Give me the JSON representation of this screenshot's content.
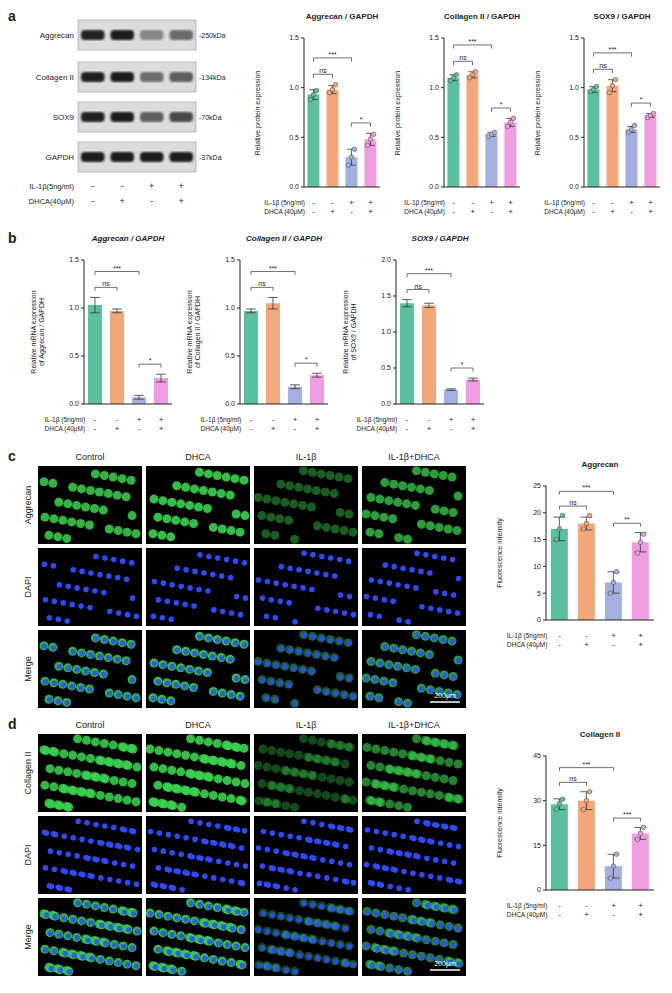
{
  "panel_labels": [
    "a",
    "b",
    "c",
    "d"
  ],
  "conditions": [
    {
      "label": "IL-1β (5ng/ml)",
      "marks": [
        "-",
        "-",
        "+",
        "+"
      ]
    },
    {
      "label": "DHCA (40μM)",
      "marks": [
        "-",
        "+",
        "-",
        "+"
      ]
    }
  ],
  "blot": {
    "proteins": [
      {
        "name": "Aggrecan",
        "size": "-250kDa"
      },
      {
        "name": "Collagen II",
        "size": "-134kDa"
      },
      {
        "name": "SOX9",
        "size": "-70kDa"
      },
      {
        "name": "GAPDH",
        "size": "-37kDa"
      }
    ],
    "conditions": [
      {
        "label": "IL-1β(5ng/ml)",
        "marks": [
          "-",
          "-",
          "+",
          "+"
        ]
      },
      {
        "label": "DHCA(40μM)",
        "marks": [
          "-",
          "+",
          "-",
          "+"
        ]
      }
    ]
  },
  "images": [
    {
      "columns": [
        "Control",
        "DHCA",
        "IL-1β",
        "IL-1β+DHCA"
      ],
      "rows": [
        "Aggrecan",
        "DAPI",
        "Merge"
      ],
      "scale_bar": "200μm"
    },
    {
      "columns": [
        "Control",
        "DHCA",
        "IL-1β",
        "IL-1β+DHCA"
      ],
      "rows": [
        "Collagen II",
        "DAPI",
        "Merge"
      ],
      "scale_bar": "200μm"
    }
  ],
  "chart_data": [
    {
      "type": "bar",
      "title": "Aggrecan / GAPDH",
      "y_label": [
        "Relative protein expression"
      ],
      "categories": [
        null,
        null,
        null,
        null
      ],
      "values": [
        0.93,
        0.98,
        0.3,
        0.48
      ],
      "errors": [
        0.05,
        0.04,
        0.08,
        0.06
      ],
      "points": [
        [
          0.88,
          0.93,
          0.97
        ],
        [
          0.95,
          0.98,
          1.03
        ],
        [
          0.22,
          0.3,
          0.38
        ],
        [
          0.42,
          0.48,
          0.53
        ]
      ],
      "colors": [
        "#5cc0a0",
        "#f2a87a",
        "#a4b0e0",
        "#ef9ce0"
      ],
      "ylim": [
        0,
        1.5
      ],
      "yticks": [
        {
          "value": 0,
          "label": "0.0"
        },
        0.5,
        {
          "value": 1,
          "label": "1.0"
        },
        1.5
      ],
      "significance": [
        {
          "from": 0,
          "to": 1,
          "label": "ns"
        },
        {
          "from": 0,
          "to": 2,
          "label": "***"
        },
        {
          "from": 2,
          "to": 3,
          "label": "*"
        }
      ]
    },
    {
      "type": "bar",
      "title": "Collagen II / GAPDH",
      "y_label": [
        "Relative protein expression"
      ],
      "categories": [
        null,
        null,
        null,
        null
      ],
      "values": [
        1.1,
        1.13,
        0.53,
        0.65
      ],
      "errors": [
        0.03,
        0.03,
        0.02,
        0.04
      ],
      "points": [
        [
          1.07,
          1.1,
          1.13
        ],
        [
          1.1,
          1.13,
          1.16
        ],
        [
          0.51,
          0.53,
          0.55
        ],
        [
          0.61,
          0.65,
          0.69
        ]
      ],
      "colors": [
        "#5cc0a0",
        "#f2a87a",
        "#a4b0e0",
        "#ef9ce0"
      ],
      "ylim": [
        0,
        1.5
      ],
      "yticks": [
        {
          "value": 0,
          "label": "0.0"
        },
        0.5,
        {
          "value": 1,
          "label": "1.0"
        },
        1.5
      ],
      "significance": [
        {
          "from": 0,
          "to": 1,
          "label": "ns"
        },
        {
          "from": 0,
          "to": 2,
          "label": "***"
        },
        {
          "from": 2,
          "to": 3,
          "label": "*"
        }
      ]
    },
    {
      "type": "bar",
      "title": "SOX9 / GAPDH",
      "y_label": [
        "Relative protein expression"
      ],
      "categories": [
        null,
        null,
        null,
        null
      ],
      "values": [
        0.98,
        1.02,
        0.58,
        0.72
      ],
      "errors": [
        0.03,
        0.06,
        0.03,
        0.02
      ],
      "points": [
        [
          0.96,
          0.98,
          1.01
        ],
        [
          0.95,
          1.02,
          1.08
        ],
        [
          0.55,
          0.58,
          0.62
        ],
        [
          0.7,
          0.72,
          0.74
        ]
      ],
      "colors": [
        "#5cc0a0",
        "#f2a87a",
        "#a4b0e0",
        "#ef9ce0"
      ],
      "ylim": [
        0,
        1.5
      ],
      "yticks": [
        {
          "value": 0,
          "label": "0.0"
        },
        0.5,
        {
          "value": 1,
          "label": "1.0"
        },
        1.5
      ],
      "significance": [
        {
          "from": 0,
          "to": 1,
          "label": "ns"
        },
        {
          "from": 0,
          "to": 2,
          "label": "***"
        },
        {
          "from": 2,
          "to": 3,
          "label": "*"
        }
      ]
    },
    {
      "type": "bar",
      "title": "Aggrecan / GAPDH",
      "y_label": [
        "Relative mRNA expression",
        "of Aggrecan / GAPDH"
      ],
      "categories": [
        null,
        null,
        null,
        null
      ],
      "values": [
        1.03,
        0.97,
        0.07,
        0.27
      ],
      "errors": [
        0.08,
        0.02,
        0.02,
        0.04
      ],
      "colors": [
        "#5cc0a0",
        "#f2a87a",
        "#a4b0e0",
        "#ef9ce0"
      ],
      "ylim": [
        0,
        1.5
      ],
      "yticks": [
        {
          "value": 0,
          "label": "0.0"
        },
        0.5,
        {
          "value": 1,
          "label": "1.0"
        },
        1.5
      ],
      "significance": [
        {
          "from": 0,
          "to": 1,
          "label": "ns"
        },
        {
          "from": 0,
          "to": 2,
          "label": "***"
        },
        {
          "from": 2,
          "to": 3,
          "label": "*"
        }
      ]
    },
    {
      "type": "bar",
      "title": "Collagen II / GAPDH",
      "y_label": [
        "Relative mRNA expression",
        "of Collagen II / GAPDH"
      ],
      "categories": [
        null,
        null,
        null,
        null
      ],
      "values": [
        0.97,
        1.05,
        0.18,
        0.3
      ],
      "errors": [
        0.02,
        0.06,
        0.02,
        0.02
      ],
      "colors": [
        "#5cc0a0",
        "#f2a87a",
        "#a4b0e0",
        "#ef9ce0"
      ],
      "ylim": [
        0,
        1.5
      ],
      "yticks": [
        {
          "value": 0,
          "label": "0.0"
        },
        0.5,
        {
          "value": 1,
          "label": "1.0"
        },
        1.5
      ],
      "significance": [
        {
          "from": 0,
          "to": 1,
          "label": "ns"
        },
        {
          "from": 0,
          "to": 2,
          "label": "***"
        },
        {
          "from": 2,
          "to": 3,
          "label": "*"
        }
      ]
    },
    {
      "type": "bar",
      "title": "SOX9 / GAPDH",
      "y_label": [
        "Relative mRNA expression",
        "of SOX9 / GAPDH"
      ],
      "categories": [
        null,
        null,
        null,
        null
      ],
      "values": [
        1.4,
        1.37,
        0.2,
        0.34
      ],
      "errors": [
        0.05,
        0.03,
        0.01,
        0.02
      ],
      "colors": [
        "#5cc0a0",
        "#f2a87a",
        "#a4b0e0",
        "#ef9ce0"
      ],
      "ylim": [
        0,
        2
      ],
      "yticks": [
        {
          "value": 0,
          "label": "0.0"
        },
        0.5,
        {
          "value": 1,
          "label": "1.0"
        },
        1.5,
        {
          "value": 2,
          "label": "2.0"
        }
      ],
      "significance": [
        {
          "from": 0,
          "to": 1,
          "label": "ns"
        },
        {
          "from": 0,
          "to": 2,
          "label": "***"
        },
        {
          "from": 2,
          "to": 3,
          "label": "*"
        }
      ]
    },
    {
      "type": "bar",
      "title": "Aggrecan",
      "y_label": [
        "Fluorescence intensity"
      ],
      "categories": [
        null,
        null,
        null,
        null
      ],
      "values": [
        17,
        18,
        7,
        14.5
      ],
      "errors": [
        2.2,
        1.2,
        2,
        1.8
      ],
      "points": [
        [
          15,
          17,
          19.5
        ],
        [
          17,
          18,
          19.5
        ],
        [
          5,
          7,
          9
        ],
        [
          12.5,
          14.5,
          16
        ]
      ],
      "colors": [
        "#5cc0a0",
        "#f2a87a",
        "#a4b0e0",
        "#ef9ce0"
      ],
      "ylim": [
        0,
        25
      ],
      "yticks": [
        0,
        5,
        10,
        15,
        20,
        25
      ],
      "significance": [
        {
          "from": 0,
          "to": 1,
          "label": "ns"
        },
        {
          "from": 0,
          "to": 2,
          "label": "***"
        },
        {
          "from": 2,
          "to": 3,
          "label": "**"
        }
      ]
    },
    {
      "type": "bar",
      "title": "Collagen II",
      "y_label": [
        "Fluorescence intensity"
      ],
      "categories": [
        null,
        null,
        null,
        null
      ],
      "values": [
        28.8,
        30,
        8,
        19
      ],
      "errors": [
        1.8,
        3,
        4,
        2
      ],
      "points": [
        [
          27,
          29,
          30.5
        ],
        [
          27,
          30,
          33
        ],
        [
          4,
          8,
          12
        ],
        [
          17,
          19,
          21
        ]
      ],
      "colors": [
        "#5cc0a0",
        "#f2a87a",
        "#a4b0e0",
        "#ef9ce0"
      ],
      "ylim": [
        0,
        45
      ],
      "yticks": [
        0,
        15,
        30,
        45
      ],
      "significance": [
        {
          "from": 0,
          "to": 1,
          "label": "ns"
        },
        {
          "from": 0,
          "to": 2,
          "label": "***"
        },
        {
          "from": 2,
          "to": 3,
          "label": "***"
        }
      ]
    }
  ]
}
